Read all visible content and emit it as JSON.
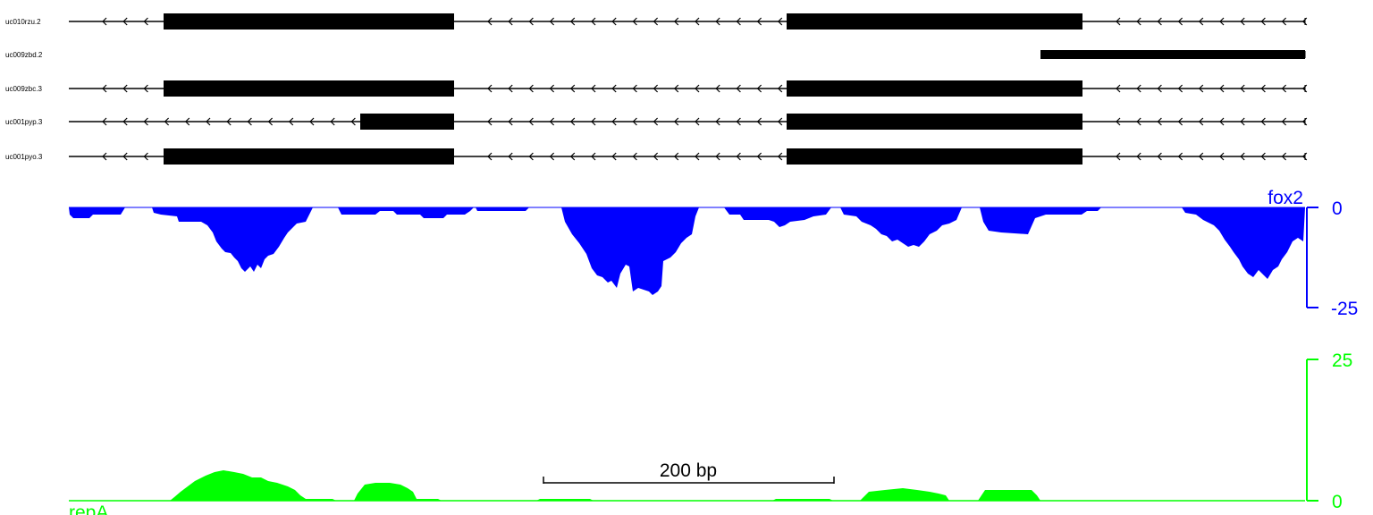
{
  "colors": {
    "gene": "#000000",
    "fox2": "#0000ff",
    "repA": "#00ff00",
    "scale": "#000000"
  },
  "genes": [
    {
      "name": "uc010rzu.2",
      "strand": "-",
      "exons": [
        [
          183,
          508
        ],
        [
          880,
          1211
        ]
      ],
      "line": [
        77,
        1460
      ]
    },
    {
      "name": "uc009zbd.2",
      "strand": "-",
      "exons": [
        [
          1164,
          1460
        ]
      ],
      "line": [
        1164,
        1460
      ]
    },
    {
      "name": "uc009zbc.3",
      "strand": "-",
      "exons": [
        [
          183,
          508
        ],
        [
          880,
          1211
        ]
      ],
      "line": [
        77,
        1460
      ]
    },
    {
      "name": "uc001pyp.3",
      "strand": "-",
      "exons": [
        [
          403,
          508
        ],
        [
          880,
          1211
        ]
      ],
      "line": [
        77,
        1460
      ]
    },
    {
      "name": "uc001pyo.3",
      "strand": "-",
      "exons": [
        [
          183,
          508
        ],
        [
          880,
          1211
        ]
      ],
      "line": [
        77,
        1460
      ]
    }
  ],
  "tracks": {
    "fox2": {
      "label": "fox2",
      "axis_top_label": "0",
      "axis_bottom_label": "-25",
      "ylim": [
        -25,
        0
      ]
    },
    "repA": {
      "label": "repA",
      "axis_top_label": "25",
      "axis_bottom_label": "0",
      "ylim": [
        0,
        25
      ]
    }
  },
  "scale_bar": {
    "label": "200 bp"
  }
}
